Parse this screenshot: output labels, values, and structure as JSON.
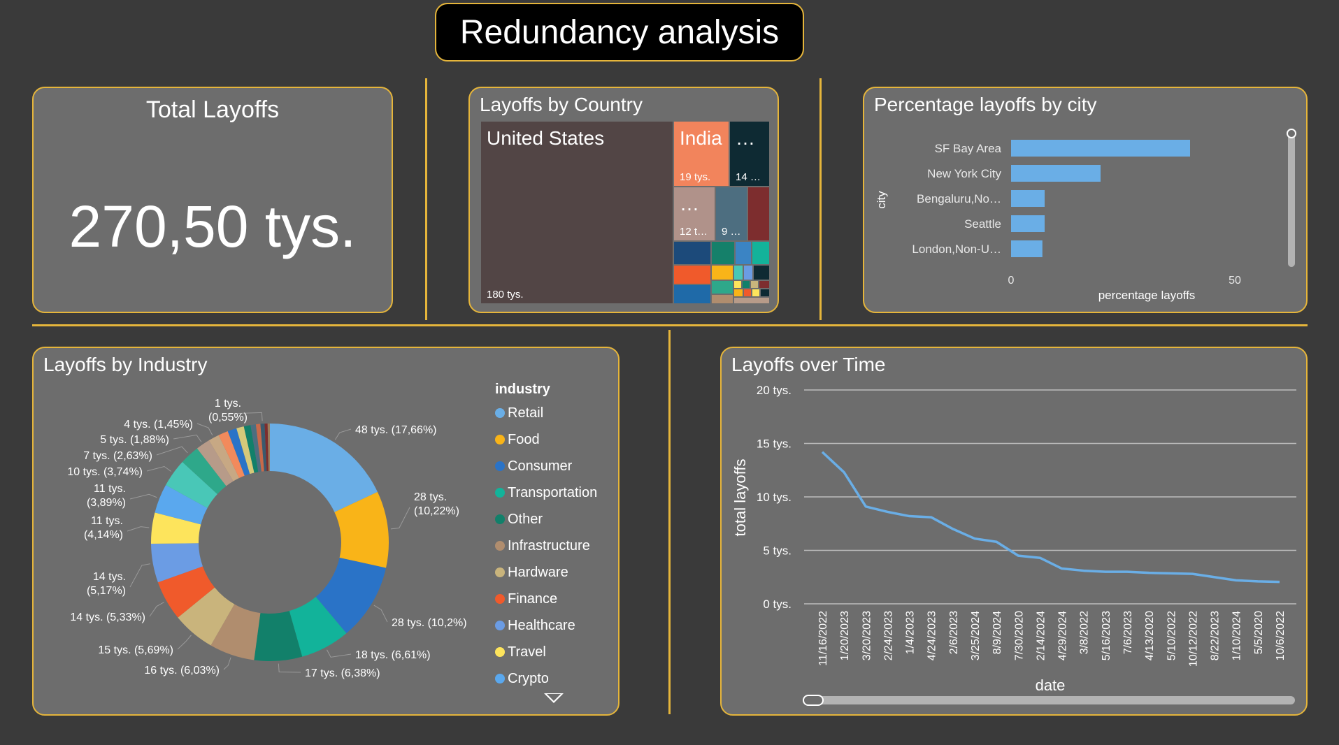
{
  "header": {
    "title": "Redundancy analysis"
  },
  "kpi": {
    "title": "Total Layoffs",
    "value": "270,50 tys."
  },
  "treemap": {
    "title": "Layoffs by Country",
    "cells": [
      {
        "name": "United States",
        "value_label": "180 tys.",
        "color": "#524545"
      },
      {
        "name": "India",
        "value_label": "19 tys.",
        "color": "#f2845c"
      },
      {
        "name": "…",
        "value_label": "14 …",
        "color": "#0e2a33"
      },
      {
        "name": "…",
        "value_label": "12 t…",
        "color": "#b0928a"
      },
      {
        "name": "",
        "value_label": "9 …",
        "color": "#4d6e80"
      },
      {
        "name": "",
        "value_label": "",
        "color": "#7d2d2e"
      }
    ]
  },
  "city_chart": {
    "title": "Percentage layoffs by city",
    "xlabel": "percentage layoffs",
    "ylabel": "city",
    "x_ticks": [
      "0",
      "50"
    ],
    "bar_color": "#6aaee6",
    "chart_data": {
      "type": "bar",
      "categories": [
        "SF Bay Area",
        "New York City",
        "Bengaluru,No…",
        "Seattle",
        "London,Non-U…"
      ],
      "values": [
        40,
        20,
        7.5,
        7.5,
        7
      ],
      "xlim": [
        0,
        50
      ]
    }
  },
  "industry_chart": {
    "title": "Layoffs by Industry",
    "legend_title": "industry",
    "chart_data": {
      "type": "pie",
      "slices": [
        {
          "name": "Retail",
          "percent": 17.66,
          "label": "48 tys. (17,66%)",
          "color": "#6aaee6"
        },
        {
          "name": "Food",
          "percent": 10.22,
          "label": "28 tys. (10,22%)",
          "color": "#f9b418"
        },
        {
          "name": "Consumer",
          "percent": 10.2,
          "label": "28 tys. (10,2%)",
          "color": "#2a73c7"
        },
        {
          "name": "Transportation",
          "percent": 6.61,
          "label": "18 tys. (6,61%)",
          "color": "#12b39a"
        },
        {
          "name": "Other",
          "percent": 6.38,
          "label": "17 tys. (6,38%)",
          "color": "#12806a"
        },
        {
          "name": "Infrastructure",
          "percent": 6.03,
          "label": "16 tys. (6,03%)",
          "color": "#b08d6e"
        },
        {
          "name": "Hardware",
          "percent": 5.69,
          "label": "15 tys. (5,69%)",
          "color": "#c9b47c"
        },
        {
          "name": "Finance",
          "percent": 5.33,
          "label": "14 tys. (5,33%)",
          "color": "#f05a2b"
        },
        {
          "name": "Healthcare",
          "percent": 5.17,
          "label": "14 tys. (5,17%)",
          "color": "#6b9ce4"
        },
        {
          "name": "Travel",
          "percent": 4.14,
          "label": "11 tys. (4,14%)",
          "color": "#fde45c"
        },
        {
          "name": "Crypto",
          "percent": 3.89,
          "label": "11 tys. (3,89%)",
          "color": "#5aa8ee"
        },
        {
          "name": "",
          "percent": 3.74,
          "label": "10 tys. (3,74%)",
          "color": "#49c7b7"
        },
        {
          "name": "",
          "percent": 2.63,
          "label": "7 tys. (2,63%)",
          "color": "#2ea88a"
        },
        {
          "name": "",
          "percent": 1.88,
          "label": "5 tys. (1,88%)",
          "color": "#b79b89"
        },
        {
          "name": "",
          "percent": 1.45,
          "label": "4 tys. (1,45%)",
          "color": "#c7a884"
        },
        {
          "name": "",
          "percent": 1.3,
          "label": "",
          "color": "#f28a5c"
        },
        {
          "name": "",
          "percent": 1.2,
          "label": "",
          "color": "#2a73c7"
        },
        {
          "name": "",
          "percent": 1.0,
          "label": "",
          "color": "#d6c97a"
        },
        {
          "name": "",
          "percent": 0.9,
          "label": "",
          "color": "#12806a"
        },
        {
          "name": "",
          "percent": 0.7,
          "label": "",
          "color": "#4d6e80"
        },
        {
          "name": "",
          "percent": 0.6,
          "label": "",
          "color": "#c86a4a"
        },
        {
          "name": "",
          "percent": 0.55,
          "label": "1 tys. (0,55%)",
          "color": "#3a5a6e"
        },
        {
          "name": "",
          "percent": 0.4,
          "label": "",
          "color": "#7d2d2e"
        },
        {
          "name": "",
          "percent": 0.3,
          "label": "",
          "color": "#9a7d5c"
        }
      ]
    }
  },
  "time_chart": {
    "title": "Layoffs over Time",
    "xlabel": "date",
    "ylabel": "total layoffs",
    "y_ticks": [
      "0 tys.",
      "5 tys.",
      "10 tys.",
      "15 tys.",
      "20 tys."
    ],
    "line_color": "#6aaee6",
    "chart_data": {
      "type": "line",
      "x": [
        "11/16/2022",
        "1/20/2023",
        "3/20/2023",
        "2/24/2023",
        "1/4/2023",
        "4/24/2023",
        "2/6/2023",
        "3/25/2024",
        "8/9/2024",
        "7/30/2020",
        "2/14/2024",
        "4/29/2024",
        "3/8/2022",
        "5/16/2023",
        "7/6/2023",
        "4/13/2020",
        "5/10/2022",
        "10/12/2022",
        "8/22/2023",
        "1/10/2024",
        "5/5/2020",
        "10/6/2022"
      ],
      "y": [
        14.2,
        12.3,
        9.1,
        8.6,
        8.2,
        8.1,
        7.0,
        6.1,
        5.8,
        4.5,
        4.3,
        3.3,
        3.1,
        3.0,
        3.0,
        2.9,
        2.85,
        2.8,
        2.5,
        2.2,
        2.1,
        2.05
      ],
      "ylim": [
        0,
        20
      ]
    }
  }
}
